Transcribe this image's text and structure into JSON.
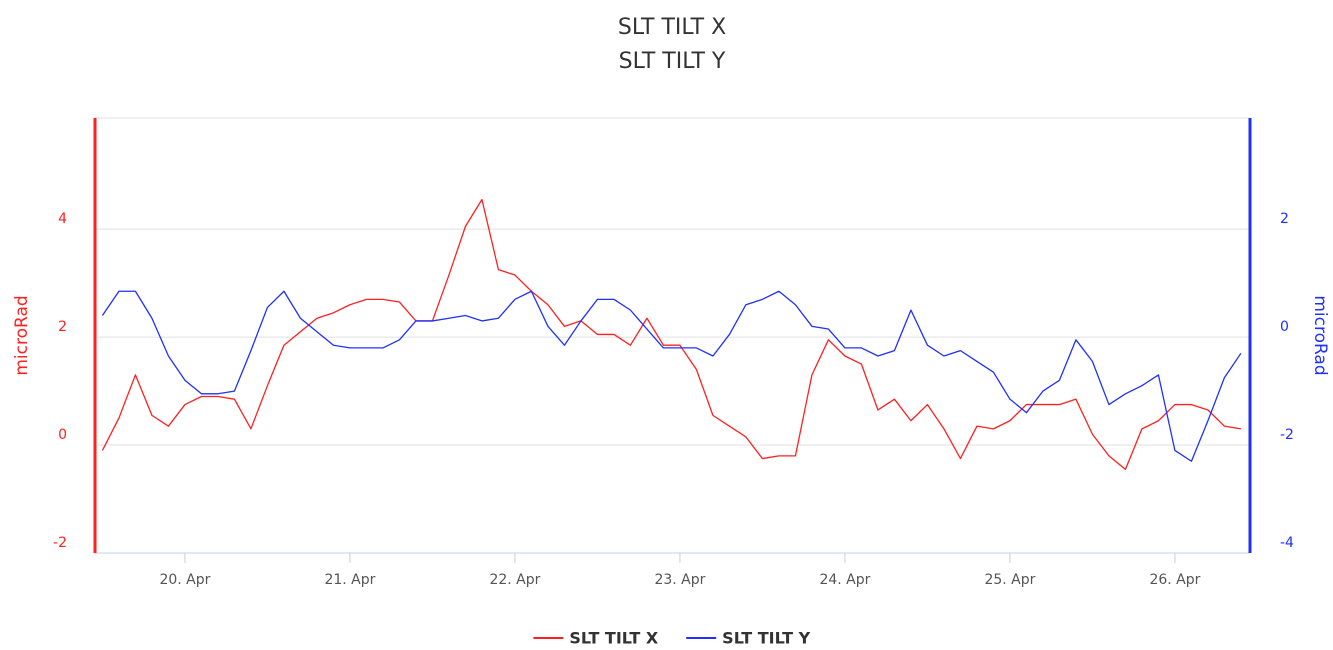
{
  "chart_data": {
    "type": "line",
    "title": "SLT TILT X",
    "subtitle": "SLT TILT Y",
    "y_label": "microRad",
    "y2_label": "microRad",
    "x": [
      19.5,
      19.6,
      19.7,
      19.8,
      19.9,
      20.0,
      20.1,
      20.2,
      20.3,
      20.4,
      20.5,
      20.6,
      20.7,
      20.8,
      20.9,
      21.0,
      21.1,
      21.2,
      21.3,
      21.4,
      21.5,
      21.6,
      21.7,
      21.8,
      21.9,
      22.0,
      22.1,
      22.2,
      22.3,
      22.4,
      22.5,
      22.6,
      22.7,
      22.8,
      22.9,
      23.0,
      23.1,
      23.2,
      23.3,
      23.4,
      23.5,
      23.6,
      23.7,
      23.8,
      23.9,
      24.0,
      24.1,
      24.2,
      24.3,
      24.4,
      24.5,
      24.6,
      24.7,
      24.8,
      24.9,
      25.0,
      25.1,
      25.2,
      25.3,
      25.4,
      25.5,
      25.6,
      25.7,
      25.8,
      25.9,
      26.0,
      26.1,
      26.2,
      26.3,
      26.4
    ],
    "xlim": [
      19.455,
      26.455
    ],
    "xticks": [
      {
        "value": 20,
        "label": "20. Apr"
      },
      {
        "value": 21,
        "label": "21. Apr"
      },
      {
        "value": 22,
        "label": "22. Apr"
      },
      {
        "value": 23,
        "label": "23. Apr"
      },
      {
        "value": 24,
        "label": "24. Apr"
      },
      {
        "value": 25,
        "label": "25. Apr"
      },
      {
        "value": 26,
        "label": "26. Apr"
      }
    ],
    "ylim": [
      -2,
      6.06
    ],
    "yticks": [
      -2,
      0,
      2,
      4
    ],
    "y2lim": [
      -4,
      4.06
    ],
    "y2ticks": [
      -4,
      -2,
      0,
      2
    ],
    "grid": true,
    "legend": "bottom",
    "series": [
      {
        "name": "SLT TILT X",
        "color": "#ff2020",
        "axis": "y",
        "values": [
          -0.1,
          0.5,
          1.3,
          0.55,
          0.35,
          0.75,
          0.9,
          0.9,
          0.85,
          0.3,
          1.1,
          1.85,
          2.1,
          2.35,
          2.45,
          2.6,
          2.7,
          2.7,
          2.65,
          2.3,
          2.3,
          3.15,
          4.05,
          4.55,
          3.25,
          3.15,
          2.85,
          2.6,
          2.2,
          2.3,
          2.05,
          2.05,
          1.85,
          2.35,
          1.85,
          1.85,
          1.4,
          0.55,
          0.35,
          0.15,
          -0.25,
          -0.2,
          -0.2,
          1.3,
          1.95,
          1.65,
          1.5,
          0.65,
          0.85,
          0.45,
          0.75,
          0.3,
          -0.25,
          0.35,
          0.3,
          0.45,
          0.75,
          0.75,
          0.75,
          0.85,
          0.2,
          -0.2,
          -0.45,
          0.3,
          0.45,
          0.75,
          0.75,
          0.65,
          0.35,
          0.3
        ]
      },
      {
        "name": "SLT TILT Y",
        "color": "#2030ff",
        "axis": "y2",
        "values": [
          0.4,
          0.85,
          0.85,
          0.35,
          -0.35,
          -0.8,
          -1.05,
          -1.05,
          -1.0,
          -0.25,
          0.55,
          0.85,
          0.35,
          0.1,
          -0.15,
          -0.2,
          -0.2,
          -0.2,
          -0.05,
          0.3,
          0.3,
          0.35,
          0.4,
          0.3,
          0.35,
          0.7,
          0.85,
          0.2,
          -0.15,
          0.3,
          0.7,
          0.7,
          0.5,
          0.15,
          -0.2,
          -0.2,
          -0.2,
          -0.35,
          0.05,
          0.6,
          0.7,
          0.85,
          0.6,
          0.2,
          0.15,
          -0.2,
          -0.2,
          -0.35,
          -0.25,
          0.5,
          -0.15,
          -0.35,
          -0.25,
          -0.45,
          -0.65,
          -1.15,
          -1.4,
          -1.0,
          -0.8,
          -0.05,
          -0.45,
          -1.25,
          -1.05,
          -0.9,
          -0.7,
          -2.1,
          -2.3,
          -1.55,
          -0.75,
          -0.3
        ]
      }
    ]
  }
}
